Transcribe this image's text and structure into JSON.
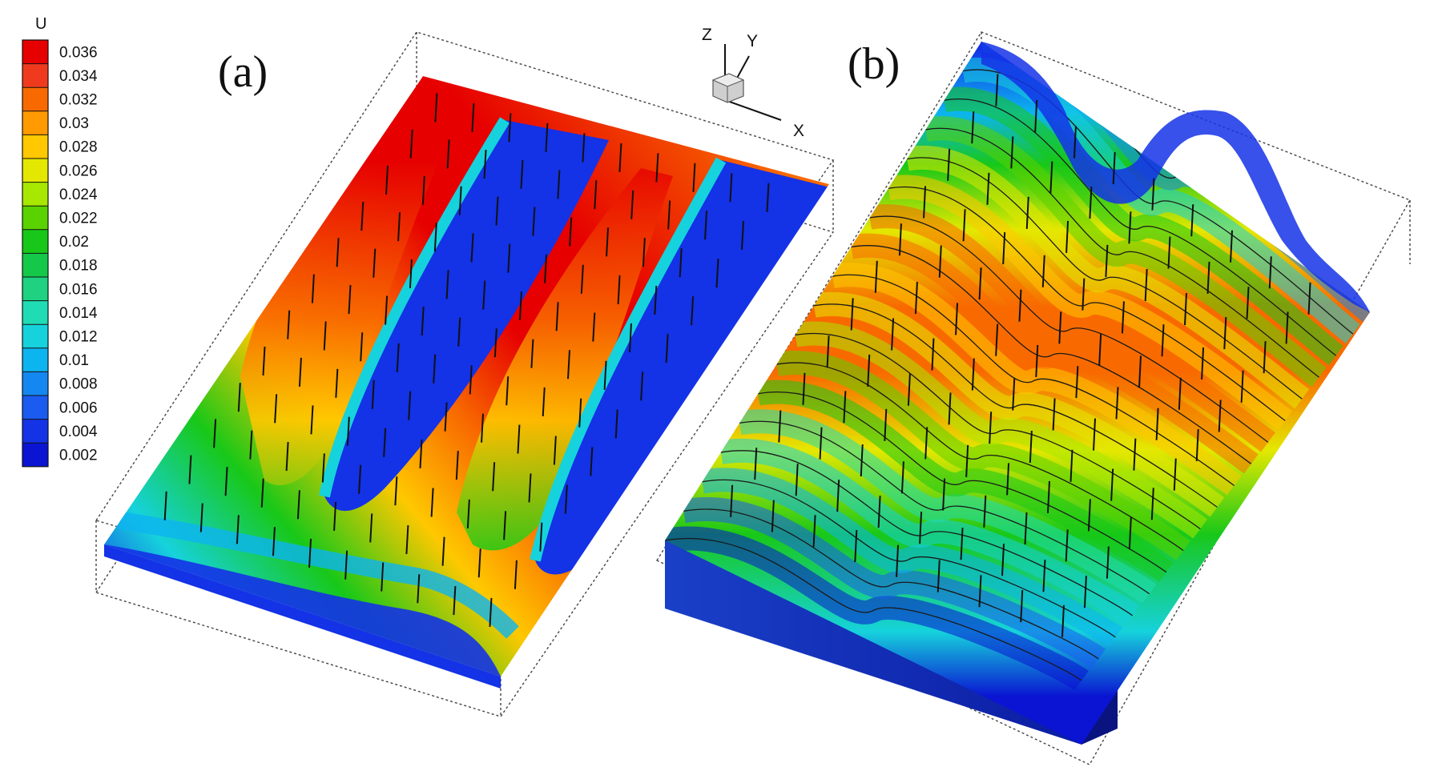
{
  "legend": {
    "title": "U",
    "ticks": [
      "0.036",
      "0.034",
      "0.032",
      "0.03",
      "0.028",
      "0.026",
      "0.024",
      "0.022",
      "0.02",
      "0.018",
      "0.016",
      "0.014",
      "0.012",
      "0.01",
      "0.008",
      "0.006",
      "0.004",
      "0.002"
    ],
    "colors": [
      "#e60000",
      "#f03a1e",
      "#f86a00",
      "#ff9a00",
      "#ffc800",
      "#e4e800",
      "#a8e800",
      "#5ad200",
      "#18c818",
      "#14c84a",
      "#1ed282",
      "#20dcb4",
      "#16d2dc",
      "#0cb4f0",
      "#1488f0",
      "#1a5cf0",
      "#1432e6",
      "#0a14d2"
    ]
  },
  "panels": [
    {
      "id": "a",
      "label": "(a)"
    },
    {
      "id": "b",
      "label": "(b)"
    }
  ],
  "orientation_axes": {
    "z": "Z",
    "y": "Y",
    "x": "X"
  }
}
